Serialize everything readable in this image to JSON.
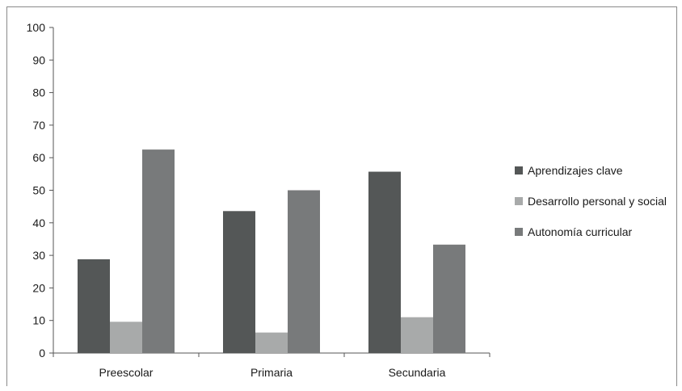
{
  "chart_data": {
    "type": "bar",
    "categories": [
      "Preescolar",
      "Primaria",
      "Secundaria"
    ],
    "series": [
      {
        "name": "Aprendizajes clave",
        "color": "#545757",
        "values": [
          28.8,
          43.6,
          55.7
        ]
      },
      {
        "name": "Desarrollo personal y social",
        "color": "#a8aaaa",
        "values": [
          9.6,
          6.3,
          11.0
        ]
      },
      {
        "name": "Autonomía curricular",
        "color": "#787a7b",
        "values": [
          62.5,
          50.0,
          33.3
        ]
      }
    ],
    "yticks": [
      "0",
      "10",
      "20",
      "30",
      "40",
      "50",
      "60",
      "70",
      "80",
      "90",
      "100"
    ],
    "ylim": [
      0,
      100
    ],
    "grid": false,
    "legend_position": "right"
  }
}
